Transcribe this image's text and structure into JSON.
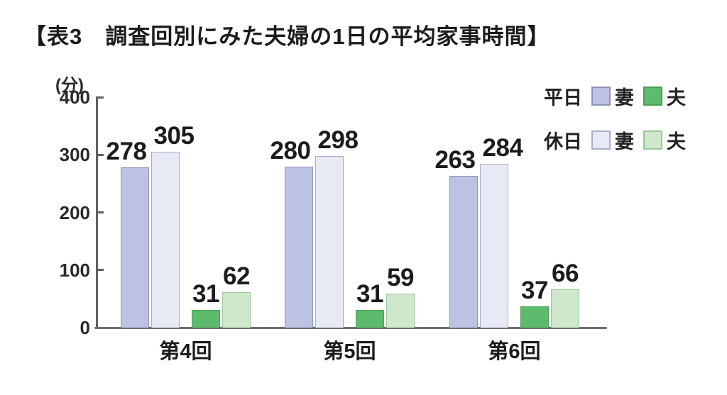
{
  "chart_data": {
    "type": "bar",
    "title": "【表3　調査回別にみた夫婦の1日の平均家事時間】",
    "y_axis_unit": "(分)",
    "categories": [
      "第4回",
      "第5回",
      "第6回"
    ],
    "series": [
      {
        "name": "平日 妻",
        "color": "#bdc2e2",
        "border": "#8e93bb",
        "values": [
          278,
          280,
          263
        ]
      },
      {
        "name": "休日 妻",
        "color": "#e7e9f5",
        "border": "#a8adc9",
        "values": [
          305,
          298,
          284
        ]
      },
      {
        "name": "平日 夫",
        "color": "#5eba6c",
        "border": "#49a056",
        "values": [
          31,
          31,
          37
        ]
      },
      {
        "name": "休日 夫",
        "color": "#cfe7ca",
        "border": "#9cc79a",
        "values": [
          62,
          59,
          66
        ]
      }
    ],
    "ylim": [
      0,
      400
    ],
    "yticks": [
      0,
      100,
      200,
      300,
      400
    ],
    "grid": false,
    "legend_position": "top-right"
  },
  "legend": {
    "rows": [
      {
        "period": "平日",
        "entries": [
          {
            "label": "妻",
            "series": 0
          },
          {
            "label": "夫",
            "series": 2
          }
        ]
      },
      {
        "period": "休日",
        "entries": [
          {
            "label": "妻",
            "series": 1
          },
          {
            "label": "夫",
            "series": 3
          }
        ]
      }
    ]
  },
  "colors": {
    "axis": "#606060",
    "text": "#1c1c1c"
  }
}
